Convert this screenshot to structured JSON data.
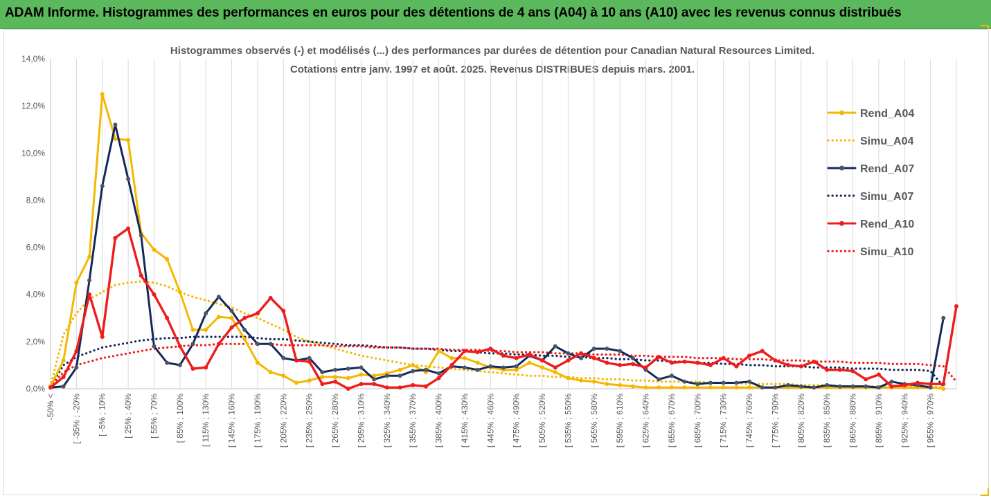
{
  "header": {
    "title": "ADAM Informe. Histogrammes des performances en euros pour des détentions de 4 ans (A04) à 10 ans (A10) avec les revenus connus distribués"
  },
  "chart_data": {
    "type": "line",
    "title_line1": "Histogrammes observés (-) et modélisés (...) des performances par durées de détention pour Canadian Natural Resources Limited.",
    "title_line2": "Cotations entre janv. 1997 et août. 2025. Revenus DISTRIBUES depuis mars. 2001.",
    "xlabel": "",
    "ylabel": "",
    "ylim": [
      0,
      14
    ],
    "yticks": [
      "0,0%",
      "2,0%",
      "4,0%",
      "6,0%",
      "8,0%",
      "10,0%",
      "12,0%",
      "14,0%"
    ],
    "grid": "vertical",
    "legend_position": "right",
    "x_tick_labels": [
      "-50% <",
      "[ -35% ; -20%",
      "[ -5% ; 10%",
      "[ 25% ; 40%",
      "[ 55% ; 70%",
      "[ 85% ; 100%",
      "[ 115% ; 130%",
      "[ 145% ; 160%",
      "[ 175% ; 190%",
      "[ 205% ; 220%",
      "[ 235% ; 250%",
      "[ 265% ; 280%",
      "[ 295% ; 310%",
      "[ 325% ; 340%",
      "[ 355% ; 370%",
      "[ 385% ; 400%",
      "[ 415% ; 430%",
      "[ 445% ; 460%",
      "[ 475% ; 490%",
      "[ 505% ; 520%",
      "[ 535% ; 550%",
      "[ 565% ; 580%",
      "[ 595% ; 610%",
      "[ 625% ; 640%",
      "[ 655% ; 670%",
      "[ 685% ; 700%",
      "[ 715% ; 730%",
      "[ 745% ; 760%",
      "[ 775% ; 790%",
      "[ 805% ; 820%",
      "[ 835% ; 850%",
      "[ 865% ; 880%",
      "[ 895% ; 910%",
      "[ 925% ; 940%",
      "[ 955% ; 970%"
    ],
    "series": [
      {
        "name": "Rend_A04",
        "style": "solid",
        "color": "#f5b800",
        "values": [
          0.1,
          1.2,
          4.5,
          5.6,
          12.5,
          10.6,
          10.55,
          6.6,
          5.9,
          5.5,
          4.1,
          2.5,
          2.5,
          3.05,
          3.0,
          2.1,
          1.1,
          0.7,
          0.55,
          0.25,
          0.35,
          0.5,
          0.5,
          0.45,
          0.6,
          0.55,
          0.65,
          0.8,
          1.0,
          0.7,
          1.6,
          1.3,
          1.3,
          1.1,
          0.9,
          0.8,
          0.8,
          1.1,
          0.9,
          0.7,
          0.45,
          0.35,
          0.3,
          0.2,
          0.15,
          0.1,
          0.05,
          0.05,
          0.05,
          0.05,
          0.05,
          0.05,
          0.05,
          0.05,
          0.05,
          0.05,
          0.05,
          0.05,
          0.05,
          0.05,
          0.05,
          0.05,
          0.05,
          0.05,
          0.05,
          0.05,
          0.05,
          0.05,
          0.05,
          0.0
        ]
      },
      {
        "name": "Simu_A04",
        "style": "dotted",
        "color": "#f5b800",
        "values": [
          0.1,
          2.3,
          3.2,
          3.8,
          4.1,
          4.4,
          4.5,
          4.55,
          4.5,
          4.35,
          4.1,
          3.9,
          3.75,
          3.6,
          3.45,
          3.2,
          3.0,
          2.75,
          2.5,
          2.2,
          2.0,
          1.85,
          1.7,
          1.55,
          1.4,
          1.3,
          1.2,
          1.1,
          1.0,
          0.95,
          0.9,
          0.85,
          0.8,
          0.75,
          0.7,
          0.65,
          0.6,
          0.55,
          0.55,
          0.5,
          0.5,
          0.45,
          0.45,
          0.4,
          0.4,
          0.35,
          0.35,
          0.3,
          0.3,
          0.3,
          0.3,
          0.25,
          0.25,
          0.25,
          0.2,
          0.2,
          0.2,
          0.2,
          0.15,
          0.15,
          0.15,
          0.1,
          0.1,
          0.1,
          0.1,
          0.1,
          0.1,
          0.1,
          0.1,
          0.05
        ]
      },
      {
        "name": "Rend_A07",
        "style": "solid",
        "color": "#14285a",
        "values": [
          0.05,
          0.1,
          0.9,
          4.6,
          8.6,
          11.2,
          8.9,
          6.5,
          1.8,
          1.1,
          1.0,
          1.9,
          3.2,
          3.9,
          3.3,
          2.5,
          1.9,
          1.9,
          1.3,
          1.2,
          1.3,
          0.7,
          0.8,
          0.85,
          0.9,
          0.4,
          0.55,
          0.55,
          0.75,
          0.8,
          0.65,
          0.95,
          0.9,
          0.8,
          0.95,
          0.9,
          0.95,
          1.4,
          1.2,
          1.8,
          1.5,
          1.3,
          1.7,
          1.7,
          1.6,
          1.3,
          0.8,
          0.4,
          0.55,
          0.3,
          0.2,
          0.25,
          0.25,
          0.25,
          0.3,
          0.05,
          0.05,
          0.15,
          0.1,
          0.05,
          0.15,
          0.1,
          0.1,
          0.1,
          0.05,
          0.3,
          0.2,
          0.15,
          0.05,
          3.0
        ]
      },
      {
        "name": "Simu_A07",
        "style": "dotted",
        "color": "#14285a",
        "values": [
          0.1,
          1.0,
          1.35,
          1.55,
          1.75,
          1.85,
          1.95,
          2.05,
          2.1,
          2.15,
          2.15,
          2.2,
          2.2,
          2.2,
          2.2,
          2.2,
          2.15,
          2.1,
          2.1,
          2.05,
          2.0,
          1.95,
          1.9,
          1.85,
          1.85,
          1.8,
          1.75,
          1.75,
          1.7,
          1.7,
          1.65,
          1.6,
          1.6,
          1.55,
          1.5,
          1.5,
          1.45,
          1.45,
          1.4,
          1.4,
          1.35,
          1.35,
          1.3,
          1.3,
          1.25,
          1.25,
          1.2,
          1.2,
          1.15,
          1.15,
          1.1,
          1.1,
          1.05,
          1.05,
          1.0,
          1.0,
          0.95,
          0.95,
          0.95,
          0.9,
          0.9,
          0.9,
          0.85,
          0.85,
          0.85,
          0.8,
          0.8,
          0.8,
          0.75,
          0.1
        ]
      },
      {
        "name": "Rend_A10",
        "style": "solid",
        "color": "#ee1c1c",
        "values": [
          0.05,
          0.5,
          1.6,
          4.0,
          2.2,
          6.4,
          6.8,
          4.8,
          4.0,
          3.0,
          1.8,
          0.85,
          0.9,
          1.9,
          2.6,
          3.0,
          3.2,
          3.85,
          3.3,
          1.2,
          1.15,
          0.2,
          0.3,
          0.0,
          0.2,
          0.2,
          0.05,
          0.05,
          0.15,
          0.1,
          0.45,
          1.0,
          1.6,
          1.55,
          1.7,
          1.4,
          1.3,
          1.45,
          1.2,
          0.9,
          1.2,
          1.5,
          1.3,
          1.1,
          1.0,
          1.05,
          0.9,
          1.35,
          1.1,
          1.15,
          1.1,
          1.0,
          1.3,
          0.95,
          1.4,
          1.6,
          1.2,
          1.0,
          0.95,
          1.15,
          0.8,
          0.8,
          0.75,
          0.4,
          0.6,
          0.1,
          0.15,
          0.25,
          0.2,
          0.2,
          3.5
        ]
      },
      {
        "name": "Simu_A10",
        "style": "dotted",
        "color": "#ee1c1c",
        "values": [
          0.1,
          0.7,
          1.0,
          1.15,
          1.3,
          1.4,
          1.5,
          1.6,
          1.7,
          1.75,
          1.8,
          1.85,
          1.85,
          1.9,
          1.9,
          1.9,
          1.9,
          1.9,
          1.85,
          1.85,
          1.85,
          1.85,
          1.8,
          1.8,
          1.8,
          1.75,
          1.75,
          1.75,
          1.7,
          1.7,
          1.7,
          1.65,
          1.65,
          1.65,
          1.6,
          1.6,
          1.55,
          1.55,
          1.55,
          1.5,
          1.5,
          1.5,
          1.45,
          1.45,
          1.45,
          1.4,
          1.4,
          1.35,
          1.35,
          1.35,
          1.3,
          1.3,
          1.3,
          1.25,
          1.25,
          1.25,
          1.2,
          1.2,
          1.2,
          1.15,
          1.15,
          1.15,
          1.1,
          1.1,
          1.1,
          1.05,
          1.05,
          1.05,
          1.0,
          0.95,
          0.3
        ]
      }
    ]
  }
}
